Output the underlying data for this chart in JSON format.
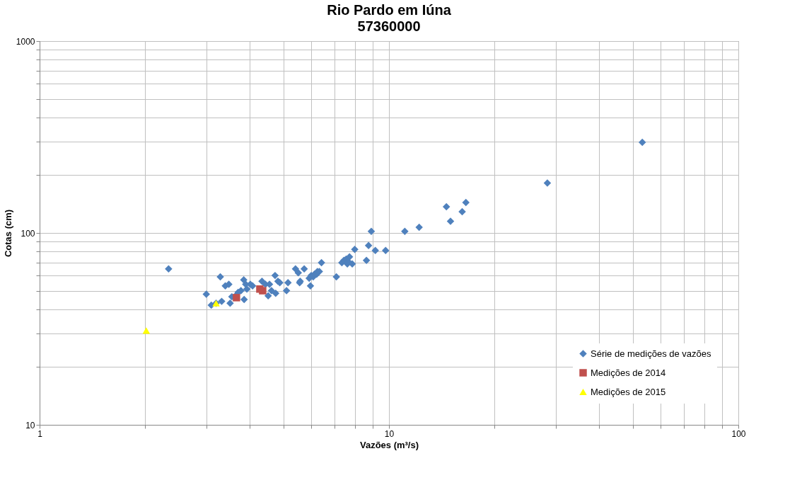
{
  "chart_data": {
    "type": "scatter",
    "title": "Rio Pardo em Iúna",
    "subtitle": "57360000",
    "xlabel": "Vazões (m³/s)",
    "ylabel": "Cotas (cm)",
    "log": "xy",
    "grid": true,
    "legend": "bottom right",
    "xlim": [
      1,
      100
    ],
    "ylim": [
      10,
      1000
    ],
    "xticks": [
      1,
      {
        "value": 2,
        "label": null
      },
      {
        "value": 3,
        "label": null
      },
      {
        "value": 4,
        "label": null
      },
      {
        "value": 5,
        "label": null
      },
      {
        "value": 6,
        "label": null
      },
      {
        "value": 7,
        "label": null
      },
      {
        "value": 8,
        "label": null
      },
      {
        "value": 9,
        "label": null
      },
      10,
      {
        "value": 20,
        "label": null
      },
      {
        "value": 30,
        "label": null
      },
      {
        "value": 40,
        "label": null
      },
      {
        "value": 50,
        "label": null
      },
      {
        "value": 60,
        "label": null
      },
      {
        "value": 70,
        "label": null
      },
      {
        "value": 80,
        "label": null
      },
      {
        "value": 90,
        "label": null
      },
      100
    ],
    "yticks": [
      10,
      {
        "value": 20,
        "label": null
      },
      {
        "value": 30,
        "label": null
      },
      {
        "value": 40,
        "label": null
      },
      {
        "value": 50,
        "label": null
      },
      {
        "value": 60,
        "label": null
      },
      {
        "value": 70,
        "label": null
      },
      {
        "value": 80,
        "label": null
      },
      {
        "value": 90,
        "label": null
      },
      100,
      {
        "value": 200,
        "label": null
      },
      {
        "value": 300,
        "label": null
      },
      {
        "value": 400,
        "label": null
      },
      {
        "value": 500,
        "label": null
      },
      {
        "value": 600,
        "label": null
      },
      {
        "value": 700,
        "label": null
      },
      {
        "value": 800,
        "label": null
      },
      {
        "value": 900,
        "label": null
      },
      1000
    ],
    "series": [
      {
        "name": "Série de medições de vazões",
        "color": "#4f81bd",
        "marker": "diamond",
        "x": [
          2.34,
          3.0,
          3.1,
          3.2,
          3.29,
          3.32,
          3.4,
          3.48,
          3.51,
          3.55,
          3.64,
          3.7,
          3.77,
          3.84,
          3.85,
          3.89,
          3.92,
          4.01,
          4.07,
          4.33,
          4.43,
          4.51,
          4.55,
          4.61,
          4.72,
          4.74,
          4.81,
          4.87,
          5.09,
          5.14,
          5.4,
          5.5,
          5.55,
          5.57,
          5.72,
          5.91,
          5.96,
          5.99,
          6.07,
          6.12,
          6.21,
          6.24,
          6.32,
          6.41,
          7.07,
          7.33,
          7.43,
          7.54,
          7.6,
          7.71,
          7.85,
          7.98,
          7.64,
          8.62,
          8.74,
          8.9,
          9.14,
          9.78,
          11.1,
          12.2,
          14.6,
          15.0,
          16.2,
          16.6,
          28.4,
          53.1
        ],
        "values": [
          65,
          48,
          42,
          43,
          59,
          44,
          53,
          54,
          43,
          46.5,
          47,
          49,
          50,
          57,
          45,
          54,
          51,
          54,
          53,
          56,
          54,
          47,
          54,
          50,
          60,
          48.5,
          56,
          55,
          50,
          55,
          65,
          62,
          55,
          56,
          65,
          58,
          53,
          60,
          59,
          61,
          61,
          63,
          63,
          70,
          59,
          70,
          72,
          73,
          69,
          75,
          69,
          82,
          71,
          72,
          86,
          102,
          81,
          81,
          102,
          107,
          137,
          115,
          129,
          144,
          182,
          297
        ]
      },
      {
        "name": "Medições de 2014",
        "color": "#c0504d",
        "marker": "square",
        "x": [
          3.66,
          4.27,
          4.35
        ],
        "values": [
          46,
          51,
          50
        ]
      },
      {
        "name": "Medições de 2015",
        "color": "#ffff00",
        "marker": "triangle",
        "x": [
          2.02,
          3.2
        ],
        "values": [
          31,
          43
        ]
      }
    ]
  }
}
